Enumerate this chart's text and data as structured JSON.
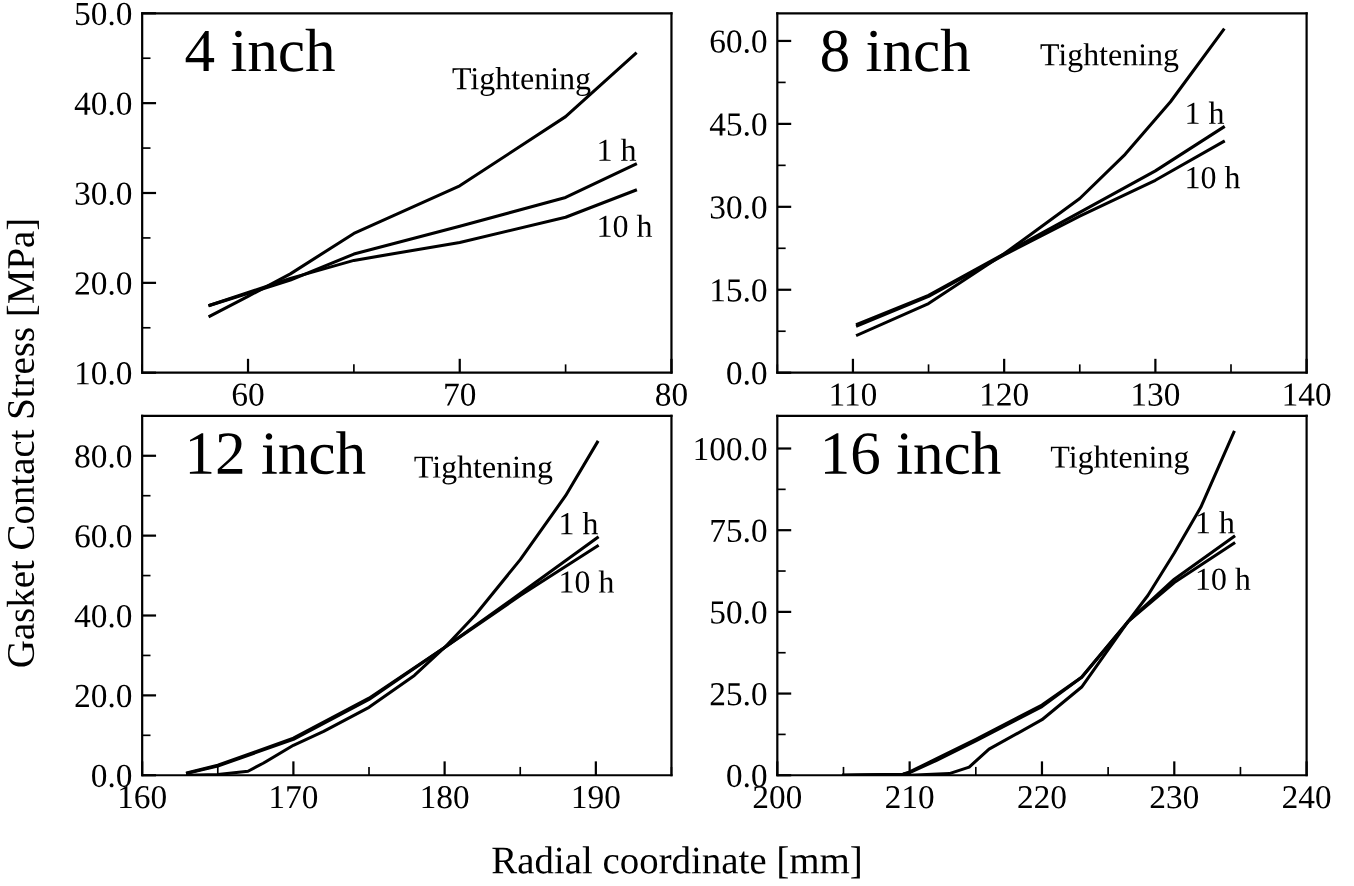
{
  "chart_data": [
    {
      "type": "line",
      "title": "4 inch",
      "xlabel": "Radial coordinate [mm]",
      "ylabel": "Gasket Contact Stress [MPa]",
      "xlim": [
        55,
        80
      ],
      "xticks": [
        60,
        70,
        80
      ],
      "ylim": [
        10,
        50
      ],
      "yticks": [
        {
          "value": 10,
          "label": "10.0"
        },
        {
          "value": 20,
          "label": "20.0"
        },
        {
          "value": 30,
          "label": "30.0"
        },
        {
          "value": 40,
          "label": "40.0"
        },
        {
          "value": 50,
          "label": "50.0"
        }
      ],
      "grid": false,
      "legend": false,
      "series": [
        {
          "name": "Tightening",
          "color": "#000000",
          "x": [
            58.2,
            60,
            62,
            65,
            70,
            75,
            78.3
          ],
          "values": [
            16.3,
            18.5,
            21,
            25.5,
            30.8,
            38.5,
            45.5
          ]
        },
        {
          "name": "1 h",
          "color": "#000000",
          "x": [
            58.2,
            62,
            65,
            70,
            75,
            78.3
          ],
          "values": [
            17.5,
            20.3,
            23.2,
            26.3,
            29.5,
            33.2
          ]
        },
        {
          "name": "10 h",
          "color": "#000000",
          "x": [
            58.2,
            62,
            65,
            70,
            75,
            78.3
          ],
          "values": [
            17.5,
            20.5,
            22.5,
            24.5,
            27.3,
            30.3
          ]
        }
      ]
    },
    {
      "type": "line",
      "title": "8 inch",
      "xlim": [
        105,
        140
      ],
      "xticks": [
        110,
        120,
        130,
        140
      ],
      "ylim": [
        0,
        65
      ],
      "yticks": [
        {
          "value": 0,
          "label": "0.0"
        },
        {
          "value": 15,
          "label": "15.0"
        },
        {
          "value": 30,
          "label": "30.0"
        },
        {
          "value": 45,
          "label": "45.0"
        },
        {
          "value": 60,
          "label": "60.0"
        }
      ],
      "grid": false,
      "legend": false,
      "series": [
        {
          "name": "Tightening",
          "color": "#000000",
          "x": [
            110.3,
            115,
            120,
            122,
            125,
            128,
            131,
            134.5
          ],
          "values": [
            6.8,
            12.5,
            21.5,
            25.5,
            31.5,
            39.5,
            49,
            62
          ]
        },
        {
          "name": "1 h",
          "color": "#000000",
          "x": [
            110.3,
            115,
            120,
            125,
            130,
            134.5
          ],
          "values": [
            8.8,
            14,
            21.5,
            29,
            36.5,
            44.4
          ]
        },
        {
          "name": "10 h",
          "color": "#000000",
          "x": [
            110.3,
            115,
            120,
            125,
            130,
            134.5
          ],
          "values": [
            8.5,
            13.8,
            21.3,
            28.3,
            34.8,
            41.8
          ]
        }
      ]
    },
    {
      "type": "line",
      "title": "12 inch",
      "xlim": [
        160,
        195
      ],
      "xticks": [
        160,
        170,
        180,
        190
      ],
      "ylim": [
        0,
        90
      ],
      "yticks": [
        {
          "value": 0,
          "label": "0.0"
        },
        {
          "value": 20,
          "label": "20.0"
        },
        {
          "value": 40,
          "label": "40.0"
        },
        {
          "value": 60,
          "label": "60.0"
        },
        {
          "value": 80,
          "label": "80.0"
        }
      ],
      "grid": false,
      "legend": false,
      "series": [
        {
          "name": "Tightening",
          "color": "#000000",
          "x": [
            163,
            165,
            167,
            168,
            170,
            172,
            175,
            178,
            180,
            182,
            185,
            188,
            190.1
          ],
          "values": [
            0,
            0.2,
            1,
            3,
            7.5,
            11,
            17,
            25,
            32,
            40,
            54,
            70,
            83.4
          ]
        },
        {
          "name": "1 h",
          "color": "#000000",
          "x": [
            163,
            165,
            170,
            175,
            180,
            185,
            190.1
          ],
          "values": [
            0.5,
            2.3,
            9,
            19,
            32,
            45.5,
            59.5
          ]
        },
        {
          "name": "10 h",
          "color": "#000000",
          "x": [
            163,
            165,
            170,
            175,
            180,
            185,
            190.1
          ],
          "values": [
            0.6,
            2.5,
            9.3,
            19.3,
            32,
            45,
            57.4
          ]
        }
      ]
    },
    {
      "type": "line",
      "title": "16 inch",
      "xlim": [
        200,
        240
      ],
      "xticks": [
        200,
        210,
        220,
        230,
        240
      ],
      "ylim": [
        0,
        110
      ],
      "yticks": [
        {
          "value": 0,
          "label": "0.0"
        },
        {
          "value": 25,
          "label": "25.0"
        },
        {
          "value": 50,
          "label": "50.0"
        },
        {
          "value": 75,
          "label": "75.0"
        },
        {
          "value": 100,
          "label": "100.0"
        }
      ],
      "grid": false,
      "legend": false,
      "series": [
        {
          "name": "Tightening",
          "color": "#000000",
          "x": [
            205,
            210,
            213,
            214.5,
            216,
            220,
            223,
            226.5,
            228,
            230,
            232,
            234.5
          ],
          "values": [
            0,
            0,
            0.5,
            2.5,
            8,
            17,
            27,
            47,
            55,
            68,
            82,
            105
          ]
        },
        {
          "name": "1 h",
          "color": "#000000",
          "x": [
            205,
            209.5,
            210,
            212,
            215,
            220,
            223,
            226.5,
            230,
            234.5
          ],
          "values": [
            0,
            0.3,
            1,
            5,
            11,
            21.5,
            30,
            47,
            60,
            73
          ]
        },
        {
          "name": "10 h",
          "color": "#000000",
          "x": [
            205,
            209.5,
            210,
            212,
            215,
            220,
            223,
            226.5,
            230,
            234.5
          ],
          "values": [
            0,
            0.3,
            0.8,
            4.5,
            10.5,
            21,
            30,
            47,
            59,
            71
          ]
        }
      ]
    }
  ]
}
